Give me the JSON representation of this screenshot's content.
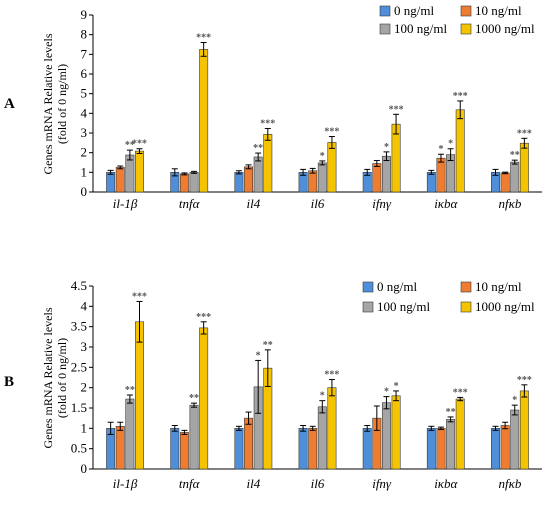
{
  "panels": [
    {
      "letter": "A",
      "chart_data": {
        "type": "bar",
        "categories": [
          "il-1β",
          "tnfα",
          "il4",
          "il6",
          "ifnγ",
          "iκbα",
          "nfκb"
        ],
        "ylabel": [
          "Genes mRNA Relative levels",
          "(fold of 0 ng/ml)"
        ],
        "ylim": [
          0,
          9
        ],
        "yticks": [
          "0",
          "1",
          "2",
          "3",
          "4",
          "5",
          "6",
          "7",
          "8",
          "9"
        ],
        "legend_position": "top-right",
        "series": [
          {
            "name": "0 ng/ml",
            "color": "#4f8fd9",
            "values": [
              1.0,
              1.0,
              1.0,
              1.0,
              1.0,
              1.0,
              1.0
            ],
            "errors": [
              0.1,
              0.18,
              0.08,
              0.15,
              0.15,
              0.1,
              0.15
            ],
            "sig": [
              "",
              "",
              "",
              "",
              "",
              "",
              ""
            ]
          },
          {
            "name": "10 ng/ml",
            "color": "#ee7d31",
            "values": [
              1.25,
              0.92,
              1.28,
              1.08,
              1.45,
              1.72,
              0.97
            ],
            "errors": [
              0.07,
              0.05,
              0.1,
              0.12,
              0.15,
              0.2,
              0.04
            ],
            "sig": [
              "",
              "",
              "",
              "",
              "",
              "*",
              ""
            ]
          },
          {
            "name": "100 ng/ml",
            "color": "#a5a5a5",
            "values": [
              1.88,
              1.0,
              1.78,
              1.48,
              1.82,
              1.9,
              1.52
            ],
            "errors": [
              0.25,
              0.05,
              0.2,
              0.1,
              0.22,
              0.3,
              0.1
            ],
            "sig": [
              "**",
              "",
              "**",
              "*",
              "*",
              "*",
              "**"
            ]
          },
          {
            "name": "1000 ng/ml",
            "color": "#f5c400",
            "values": [
              2.08,
              7.25,
              2.93,
              2.52,
              3.45,
              4.18,
              2.48
            ],
            "errors": [
              0.12,
              0.35,
              0.3,
              0.3,
              0.5,
              0.45,
              0.25
            ],
            "sig": [
              "***",
              "***",
              "***",
              "***",
              "***",
              "***",
              "***"
            ]
          }
        ]
      }
    },
    {
      "letter": "B",
      "chart_data": {
        "type": "bar",
        "categories": [
          "il-1β",
          "tnfα",
          "il4",
          "il6",
          "ifnγ",
          "iκbα",
          "nfκb"
        ],
        "ylabel": [
          "Genes mRNA Relative levels",
          "(fold of 0 ng/ml)"
        ],
        "ylim": [
          0,
          4.5
        ],
        "yticks": [
          "0",
          "0.5",
          "1",
          "1.5",
          "2",
          "2.5",
          "3",
          "3.5",
          "4",
          "4.5"
        ],
        "legend_position": "top-right",
        "series": [
          {
            "name": "0 ng/ml",
            "color": "#4f8fd9",
            "values": [
              1.0,
              1.0,
              1.0,
              1.0,
              1.0,
              1.0,
              1.0
            ],
            "errors": [
              0.15,
              0.07,
              0.05,
              0.07,
              0.07,
              0.05,
              0.05
            ],
            "sig": [
              "",
              "",
              "",
              "",
              "",
              "",
              ""
            ]
          },
          {
            "name": "10 ng/ml",
            "color": "#ee7d31",
            "values": [
              1.05,
              0.9,
              1.25,
              1.0,
              1.25,
              1.0,
              1.07
            ],
            "errors": [
              0.1,
              0.05,
              0.15,
              0.05,
              0.3,
              0.03,
              0.08
            ],
            "sig": [
              "",
              "",
              "",
              "",
              "",
              "",
              ""
            ]
          },
          {
            "name": "100 ng/ml",
            "color": "#a5a5a5",
            "values": [
              1.72,
              1.57,
              2.02,
              1.53,
              1.63,
              1.22,
              1.45
            ],
            "errors": [
              0.1,
              0.05,
              0.65,
              0.15,
              0.15,
              0.06,
              0.12
            ],
            "sig": [
              "**",
              "**",
              "*",
              "*",
              "*",
              "**",
              "*"
            ]
          },
          {
            "name": "1000 ng/ml",
            "color": "#f5c400",
            "values": [
              3.62,
              3.47,
              2.48,
              2.0,
              1.8,
              1.72,
              1.92
            ],
            "errors": [
              0.5,
              0.15,
              0.45,
              0.2,
              0.12,
              0.04,
              0.15
            ],
            "sig": [
              "***",
              "***",
              "**",
              "***",
              "*",
              "***",
              "***"
            ]
          }
        ]
      }
    }
  ]
}
